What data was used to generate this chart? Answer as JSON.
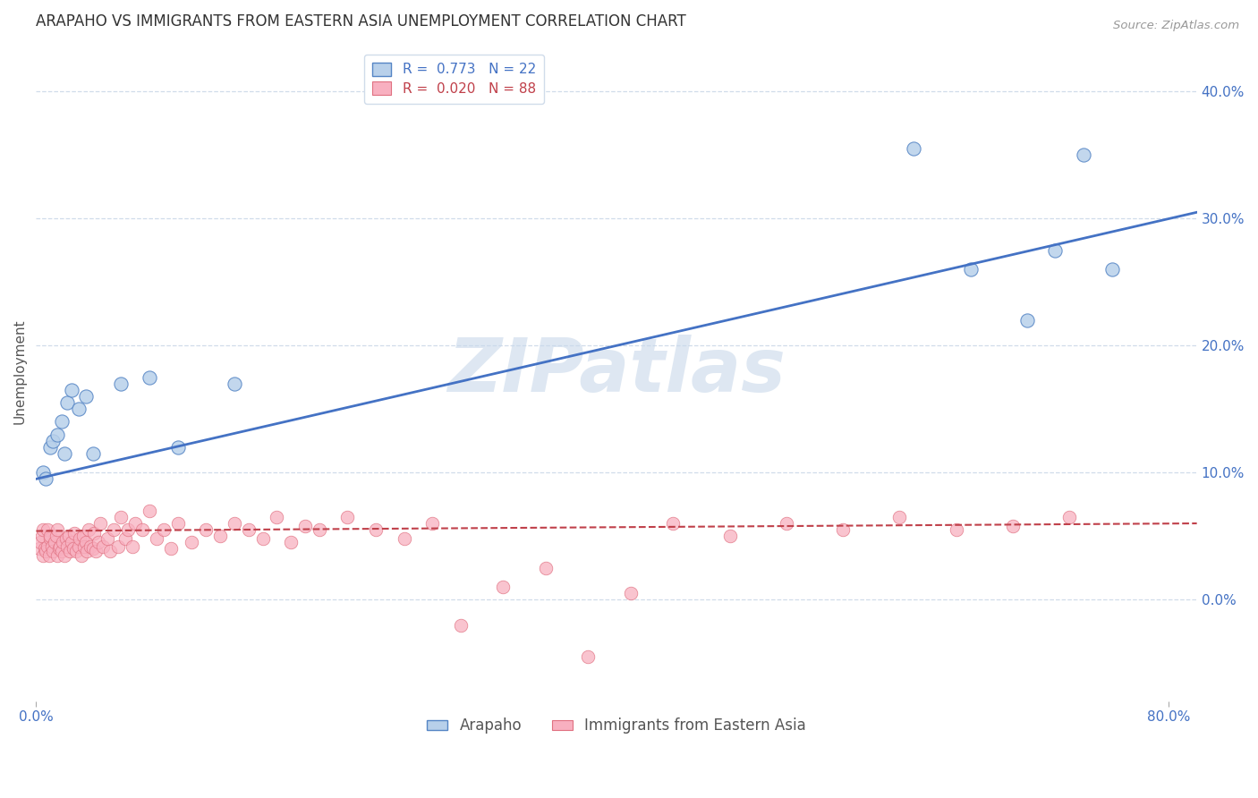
{
  "title": "ARAPAHO VS IMMIGRANTS FROM EASTERN ASIA UNEMPLOYMENT CORRELATION CHART",
  "source": "Source: ZipAtlas.com",
  "ylabel": "Unemployment",
  "xlim": [
    0.0,
    0.82
  ],
  "ylim": [
    -0.08,
    0.44
  ],
  "yticks": [
    0.0,
    0.1,
    0.2,
    0.3,
    0.4
  ],
  "ytick_labels": [
    "0.0%",
    "10.0%",
    "20.0%",
    "30.0%",
    "40.0%"
  ],
  "xtick_positions": [
    0.0,
    0.8
  ],
  "xtick_labels": [
    "0.0%",
    "80.0%"
  ],
  "arapaho_x": [
    0.005,
    0.007,
    0.01,
    0.012,
    0.015,
    0.018,
    0.02,
    0.022,
    0.025,
    0.03,
    0.035,
    0.04,
    0.06,
    0.08,
    0.1,
    0.14,
    0.62,
    0.66,
    0.7,
    0.72,
    0.74,
    0.76
  ],
  "arapaho_y": [
    0.1,
    0.095,
    0.12,
    0.125,
    0.13,
    0.14,
    0.115,
    0.155,
    0.165,
    0.15,
    0.16,
    0.115,
    0.17,
    0.175,
    0.12,
    0.17,
    0.355,
    0.26,
    0.22,
    0.275,
    0.35,
    0.26
  ],
  "immigrants_x": [
    0.002,
    0.003,
    0.004,
    0.005,
    0.005,
    0.006,
    0.007,
    0.008,
    0.008,
    0.009,
    0.01,
    0.01,
    0.011,
    0.012,
    0.013,
    0.014,
    0.015,
    0.015,
    0.016,
    0.017,
    0.018,
    0.019,
    0.02,
    0.021,
    0.022,
    0.023,
    0.024,
    0.025,
    0.026,
    0.027,
    0.028,
    0.03,
    0.031,
    0.032,
    0.033,
    0.034,
    0.035,
    0.036,
    0.037,
    0.038,
    0.04,
    0.041,
    0.042,
    0.044,
    0.045,
    0.047,
    0.05,
    0.052,
    0.055,
    0.058,
    0.06,
    0.063,
    0.065,
    0.068,
    0.07,
    0.075,
    0.08,
    0.085,
    0.09,
    0.095,
    0.1,
    0.11,
    0.12,
    0.13,
    0.14,
    0.15,
    0.16,
    0.17,
    0.18,
    0.19,
    0.2,
    0.22,
    0.24,
    0.26,
    0.28,
    0.3,
    0.33,
    0.36,
    0.39,
    0.42,
    0.45,
    0.49,
    0.53,
    0.57,
    0.61,
    0.65,
    0.69,
    0.73
  ],
  "immigrants_y": [
    0.04,
    0.045,
    0.05,
    0.035,
    0.055,
    0.04,
    0.038,
    0.042,
    0.055,
    0.035,
    0.048,
    0.05,
    0.042,
    0.038,
    0.045,
    0.05,
    0.035,
    0.055,
    0.04,
    0.042,
    0.038,
    0.045,
    0.035,
    0.048,
    0.042,
    0.05,
    0.038,
    0.045,
    0.04,
    0.052,
    0.038,
    0.042,
    0.048,
    0.035,
    0.05,
    0.042,
    0.045,
    0.038,
    0.055,
    0.042,
    0.04,
    0.052,
    0.038,
    0.045,
    0.06,
    0.042,
    0.048,
    0.038,
    0.055,
    0.042,
    0.065,
    0.048,
    0.055,
    0.042,
    0.06,
    0.055,
    0.07,
    0.048,
    0.055,
    0.04,
    0.06,
    0.045,
    0.055,
    0.05,
    0.06,
    0.055,
    0.048,
    0.065,
    0.045,
    0.058,
    0.055,
    0.065,
    0.055,
    0.048,
    0.06,
    -0.02,
    0.01,
    0.025,
    -0.045,
    0.005,
    0.06,
    0.05,
    0.06,
    0.055,
    0.065,
    0.055,
    0.058,
    0.065
  ],
  "arapaho_color": "#b8d0ea",
  "immigrants_color": "#f8b0c0",
  "arapaho_edge_color": "#5585c5",
  "immigrants_edge_color": "#e07080",
  "arapaho_line_color": "#4472C4",
  "immigrants_line_color": "#C0404A",
  "arapaho_R": 0.773,
  "arapaho_N": 22,
  "immigrants_R": 0.02,
  "immigrants_N": 88,
  "watermark": "ZIPatlas",
  "watermark_color": "#c8d8ea",
  "title_fontsize": 12,
  "axis_label_fontsize": 11,
  "tick_fontsize": 11,
  "legend_fontsize": 11,
  "background_color": "#ffffff",
  "grid_color": "#d0dcea",
  "arapaho_trend": [
    0.0,
    0.82,
    0.095,
    0.305
  ],
  "immigrants_trend": [
    0.0,
    0.82,
    0.054,
    0.06
  ]
}
